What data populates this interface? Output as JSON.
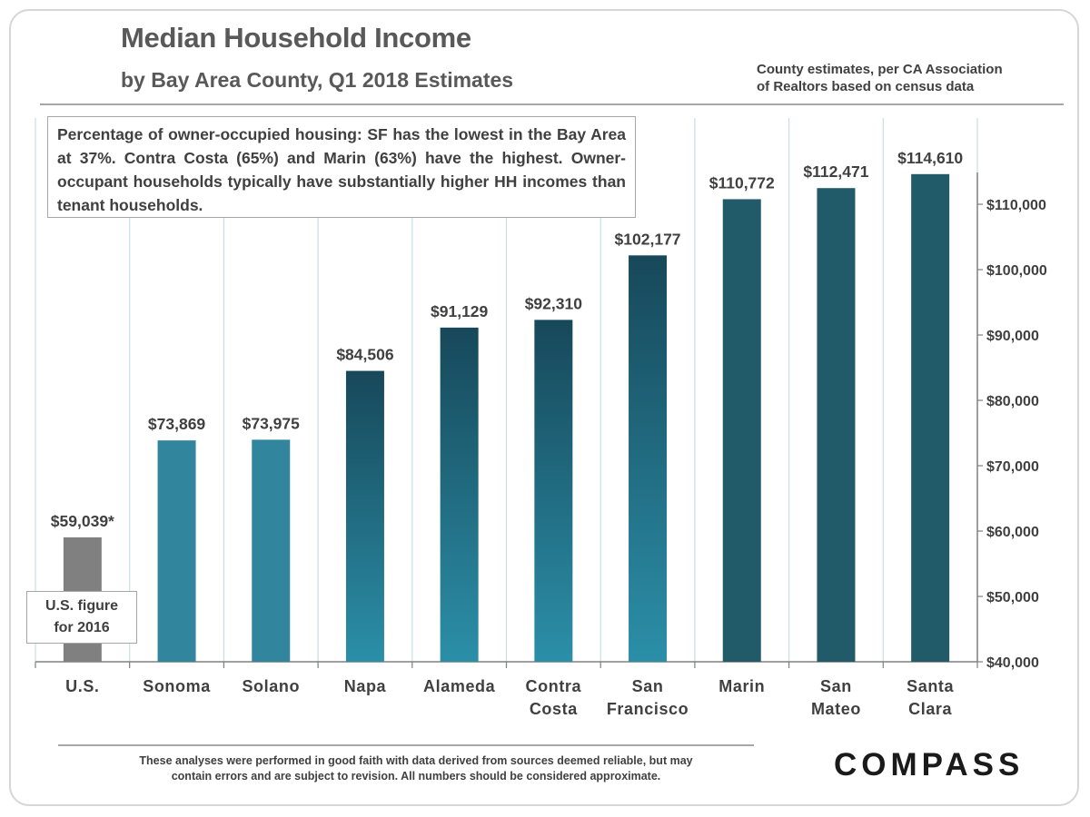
{
  "header": {
    "title": "Median Household Income",
    "subtitle": "by Bay Area County, Q1 2018 Estimates",
    "source_line1": "County estimates, per CA Association",
    "source_line2": "of Realtors based on census data"
  },
  "note": "Percentage of owner-occupied housing: SF has the lowest in the Bay Area at 37%. Contra Costa (65%) and Marin (63%) have the highest. Owner-occupant households typically have substantially higher HH incomes than tenant households.",
  "us_note": {
    "line1": "U.S. figure",
    "line2": "for 2016"
  },
  "footer": {
    "disclaimer_line1": "These analyses were performed in good faith with data derived from sources deemed reliable, but may",
    "disclaimer_line2": "contain errors and are subject to revision.  All numbers should be considered approximate.",
    "logo": "COMPASS"
  },
  "chart_data": {
    "type": "bar",
    "categories": [
      [
        "U.S."
      ],
      [
        "Sonoma"
      ],
      [
        "Solano"
      ],
      [
        "Napa"
      ],
      [
        "Alameda"
      ],
      [
        "Contra",
        "Costa"
      ],
      [
        "San",
        "Francisco"
      ],
      [
        "Marin"
      ],
      [
        "San",
        "Mateo"
      ],
      [
        "Santa",
        "Clara"
      ]
    ],
    "values": [
      59039,
      73869,
      73975,
      84506,
      91129,
      92310,
      102177,
      110772,
      112471,
      114610
    ],
    "data_labels": [
      "$59,039*",
      "$73,869",
      "$73,975",
      "$84,506",
      "$91,129",
      "$92,310",
      "$102,177",
      "$110,772",
      "$112,471",
      "$114,610"
    ],
    "bar_styles": [
      "gray",
      "teal-light",
      "teal-light",
      "gradient",
      "gradient",
      "gradient",
      "gradient",
      "teal-dark",
      "teal-dark",
      "teal-dark"
    ],
    "ylim": [
      40000,
      120000
    ],
    "yticks": [
      40000,
      50000,
      60000,
      70000,
      80000,
      90000,
      100000,
      110000
    ],
    "ytick_labels": [
      "$40,000",
      "$50,000",
      "$60,000",
      "$70,000",
      "$80,000",
      "$90,000",
      "$100,000",
      "$110,000"
    ],
    "y_axis_side": "right",
    "grid": "vertical category separators",
    "colors": {
      "gray": "#808080",
      "teal-light": "#31859c",
      "teal-dark": "#215a69",
      "gradient_top": "#17485a",
      "gradient_bottom": "#2b8fa8",
      "separator": "#c8dfe5"
    }
  }
}
